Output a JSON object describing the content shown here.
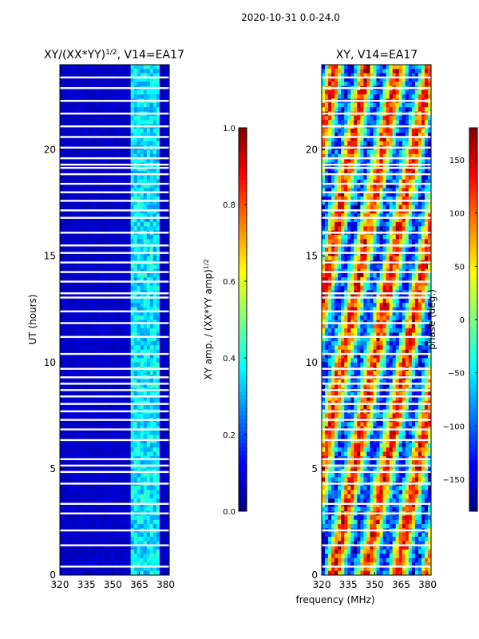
{
  "suptitle": "2020-10-31 0.0-24.0",
  "chart_data": [
    {
      "type": "heatmap",
      "title": "XY/(XX*YY)",
      "title_superscript": "1/2",
      "title_suffix": ", V14=EA17",
      "xlabel": "",
      "ylabel": "UT (hours)",
      "xlim": [
        320,
        382
      ],
      "ylim": [
        0,
        24
      ],
      "xticks": [
        "320",
        "335",
        "350",
        "365",
        "380"
      ],
      "yticks": [
        "0",
        "5",
        "10",
        "15",
        "20"
      ],
      "colormap": "jet",
      "colorbar": {
        "label": "XY amp. / (XX*YY amp)",
        "label_superscript": "1/2",
        "range": [
          0.0,
          1.0
        ],
        "ticks": [
          "0.0",
          "0.2",
          "0.4",
          "0.6",
          "0.8",
          "1.0"
        ]
      },
      "description_values": {
        "background_level": 0.05,
        "band_low_mhz": 360,
        "band_high_mhz": 376,
        "band_level": 0.35
      }
    },
    {
      "type": "heatmap",
      "title": "XY, V14=EA17",
      "xlabel": "frequency (MHz)",
      "ylabel": "",
      "xlim": [
        320,
        382
      ],
      "ylim": [
        0,
        24
      ],
      "xticks": [
        "320",
        "335",
        "350",
        "365",
        "380"
      ],
      "yticks": [
        "0",
        "5",
        "10",
        "15",
        "20"
      ],
      "colormap": "jet",
      "colorbar": {
        "label": "phase (deg.)",
        "range": [
          -180,
          180
        ],
        "ticks": [
          "−150",
          "−100",
          "−50",
          "0",
          "50",
          "100",
          "150"
        ]
      }
    }
  ],
  "flagged_rows_ut_hours": [
    0.4,
    1.4,
    2.1,
    2.9,
    3.35,
    4.3,
    4.85,
    5.15,
    5.45,
    6.35,
    6.85,
    7.3,
    7.7,
    8.05,
    8.4,
    8.7,
    9.0,
    9.3,
    9.7,
    10.4,
    11.2,
    11.85,
    12.4,
    13.05,
    13.25,
    13.8,
    14.25,
    14.7,
    15.15,
    15.5,
    16.1,
    16.8,
    17.15,
    17.6,
    18.0,
    18.4,
    18.85,
    19.15,
    19.3,
    19.6,
    20.1,
    20.6,
    21.1,
    21.7,
    22.3,
    22.9,
    23.4
  ],
  "colors": {
    "low": "#000080",
    "mid": "#7fff7f",
    "high": "#800000",
    "flag": "#ffffff"
  }
}
